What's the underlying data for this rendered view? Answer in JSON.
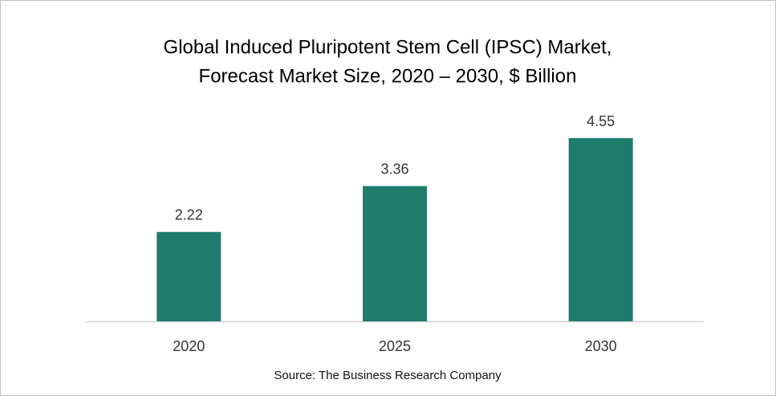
{
  "chart_data": {
    "type": "bar",
    "title": [
      "Global Induced Pluripotent Stem Cell (IPSC) Market,",
      "Forecast Market Size, 2020 – 2030, $ Billion"
    ],
    "categories": [
      "2020",
      "2025",
      "2030"
    ],
    "values": [
      2.22,
      3.36,
      4.55
    ],
    "color": "#1f7b6b",
    "source": "Source: The Business Research Company"
  }
}
